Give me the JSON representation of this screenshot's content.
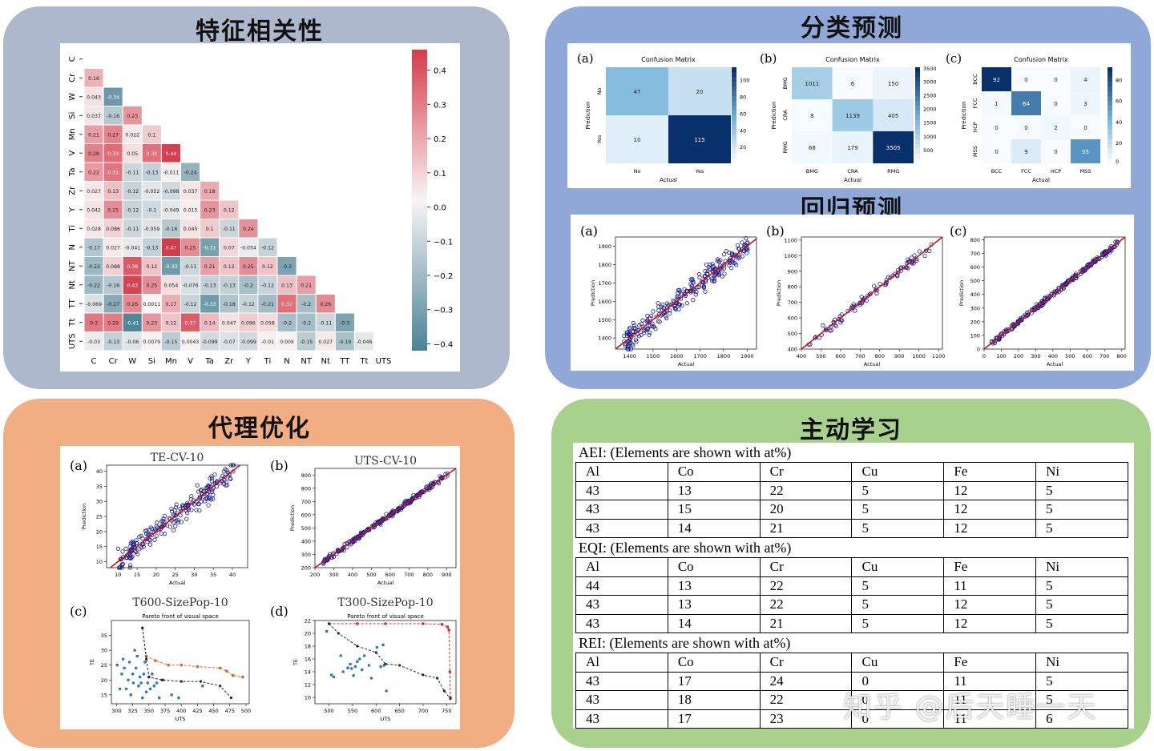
{
  "panels": {
    "correlation": {
      "title": "特征相关性"
    },
    "classification": {
      "title": "分类预测"
    },
    "regression": {
      "title": "回归预测"
    },
    "surrogate": {
      "title": "代理优化"
    },
    "active_learning": {
      "title": "主动学习"
    }
  },
  "colors": {
    "tl_bg": "#aeb8cc",
    "tr_bg": "#8fa8d8",
    "bl_bg": "#f1ae82",
    "br_bg": "#a9d18e",
    "positive": "#d63b4a",
    "negative": "#3e7b8f",
    "navy": "#08306b",
    "fit_line": "#cc1111",
    "points": "#1a1a8c",
    "pareto_orange": "#e0651e",
    "pareto_blue": "#2b7bb9"
  },
  "chart_data": [
    {
      "type": "heatmap",
      "labels": [
        "C",
        "Cr",
        "W",
        "Si",
        "Mn",
        "V",
        "Ta",
        "Zr",
        "Y",
        "Ti",
        "N",
        "NT",
        "Nt",
        "TT",
        "Tt",
        "UTS"
      ],
      "values": [
        [
          0.16
        ],
        [
          0.043,
          -0.34
        ],
        [
          0.037,
          -0.16,
          0.23
        ],
        [
          0.21,
          0.27,
          0.022,
          0.1
        ],
        [
          0.28,
          0.33,
          0.05,
          0.32,
          0.44
        ],
        [
          0.22,
          0.31,
          -0.11,
          -0.13,
          -0.011,
          -0.24
        ],
        [
          0.027,
          0.13,
          -0.12,
          -0.052,
          -0.098,
          0.037,
          0.18
        ],
        [
          0.042,
          0.25,
          -0.12,
          -0.1,
          -0.049,
          0.015,
          0.23,
          0.12
        ],
        [
          0.028,
          0.086,
          -0.11,
          -0.059,
          -0.16,
          0.045,
          0.1,
          -0.11,
          0.24
        ],
        [
          -0.17,
          0.027,
          -0.041,
          -0.13,
          0.47,
          0.25,
          -0.31,
          0.07,
          -0.034,
          -0.12
        ],
        [
          -0.22,
          0.088,
          0.38,
          0.12,
          -0.33,
          -0.11,
          0.21,
          0.12,
          0.25,
          0.12,
          -0.3
        ],
        [
          -0.22,
          -0.16,
          0.43,
          0.25,
          0.054,
          -0.076,
          -0.13,
          -0.13,
          -0.2,
          -0.12,
          0.13,
          0.21
        ],
        [
          -0.069,
          -0.27,
          0.26,
          0.0011,
          0.17,
          -0.12,
          -0.33,
          -0.18,
          -0.12,
          -0.21,
          0.32,
          -0.2,
          0.26
        ],
        [
          0.3,
          0.29,
          -0.41,
          0.23,
          0.12,
          0.37,
          0.14,
          0.047,
          0.096,
          0.058,
          -0.2,
          -0.2,
          -0.11,
          -0.3
        ],
        [
          -0.03,
          -0.13,
          -0.06,
          0.0079,
          -0.15,
          0.0043,
          -0.099,
          -0.07,
          -0.099,
          -0.01,
          0.005,
          -0.15,
          0.027,
          -0.19,
          -0.046
        ]
      ],
      "colorbar_ticks": [
        "0.4",
        "0.3",
        "0.2",
        "0.1",
        "0.0",
        "−0.1",
        "−0.2",
        "−0.3",
        "−0.4"
      ]
    },
    {
      "type": "heatmap",
      "panel_label": "(a)",
      "title": "Confusion Matrix",
      "xlabel": "Actual",
      "ylabel": "Prediction",
      "x_categories": [
        "No",
        "Yes"
      ],
      "y_categories": [
        "No",
        "Yes"
      ],
      "values": [
        [
          47,
          20
        ],
        [
          10,
          115
        ]
      ],
      "colorbar_ticks": [
        "100",
        "80",
        "60",
        "40",
        "20"
      ],
      "max": 115
    },
    {
      "type": "heatmap",
      "panel_label": "(b)",
      "title": "Confusion Matrix",
      "xlabel": "Actual",
      "ylabel": "Prediction",
      "x_categories": [
        "BMG",
        "CRA",
        "RMG"
      ],
      "y_categories": [
        "BMG",
        "CRA",
        "RMG"
      ],
      "values": [
        [
          1011,
          6,
          150
        ],
        [
          8,
          1139,
          405
        ],
        [
          68,
          179,
          3505
        ]
      ],
      "colorbar_ticks": [
        "3500",
        "3000",
        "2500",
        "2000",
        "1500",
        "1000",
        "500"
      ],
      "max": 3505
    },
    {
      "type": "heatmap",
      "panel_label": "(c)",
      "title": "Confusion Matrix",
      "xlabel": "Actual",
      "ylabel": "Prediction",
      "x_categories": [
        "BCC",
        "FCC",
        "HCP",
        "MSS"
      ],
      "y_categories": [
        "BCC",
        "FCC",
        "HCP",
        "MSS"
      ],
      "values": [
        [
          92,
          0,
          0,
          4
        ],
        [
          1,
          64,
          0,
          3
        ],
        [
          0,
          0,
          2,
          0
        ],
        [
          0,
          9,
          0,
          55
        ]
      ],
      "colorbar_ticks": [
        "80",
        "60",
        "40",
        "20",
        "0"
      ],
      "max": 92
    },
    {
      "type": "scatter",
      "panel_label": "(a)",
      "xlabel": "Actual",
      "ylabel": "Prediction",
      "xlim": [
        1340,
        1940
      ],
      "ylim": [
        1340,
        1950
      ],
      "xticks": [
        "1400",
        "1500",
        "1600",
        "1700",
        "1800",
        "1900"
      ],
      "yticks": [
        "1400",
        "1500",
        "1600",
        "1700",
        "1800",
        "1900"
      ],
      "n_points": 260,
      "spread": 40
    },
    {
      "type": "scatter",
      "panel_label": "(b)",
      "xlabel": "Actual",
      "ylabel": "Prediction",
      "xlim": [
        400,
        1120
      ],
      "ylim": [
        400,
        1120
      ],
      "xticks": [
        "400",
        "500",
        "600",
        "700",
        "800",
        "900",
        "1000",
        "1100"
      ],
      "yticks": [
        "400",
        "500",
        "600",
        "700",
        "800",
        "900",
        "1000",
        "1100"
      ],
      "n_points": 90,
      "spread": 28
    },
    {
      "type": "scatter",
      "panel_label": "(c)",
      "xlabel": "Actual",
      "ylabel": "Prediction",
      "xlim": [
        0,
        820
      ],
      "ylim": [
        0,
        820
      ],
      "xticks": [
        "0",
        "100",
        "200",
        "300",
        "400",
        "500",
        "600",
        "700",
        "800"
      ],
      "yticks": [
        "0",
        "100",
        "200",
        "300",
        "400",
        "500",
        "600",
        "700",
        "800"
      ],
      "n_points": 230,
      "spread": 14
    },
    {
      "type": "scatter",
      "panel_label": "(a)",
      "title": "TE-CV-10",
      "xlabel": "Actual",
      "ylabel": "Prediction",
      "xlim": [
        7,
        44
      ],
      "ylim": [
        8,
        42
      ],
      "xticks": [
        "10",
        "15",
        "20",
        "25",
        "30",
        "35",
        "40"
      ],
      "yticks": [
        "10",
        "15",
        "20",
        "25",
        "30",
        "35",
        "40"
      ],
      "n_points": 220,
      "spread": 3
    },
    {
      "type": "scatter",
      "panel_label": "(b)",
      "title": "UTS-CV-10",
      "xlabel": "Actual",
      "ylabel": "Prediction",
      "xlim": [
        200,
        950
      ],
      "ylim": [
        200,
        950
      ],
      "xticks": [
        "200",
        "300",
        "400",
        "500",
        "600",
        "700",
        "800",
        "900"
      ],
      "yticks": [
        "200",
        "300",
        "400",
        "500",
        "600",
        "700",
        "800",
        "900"
      ],
      "n_points": 230,
      "spread": 14
    },
    {
      "type": "scatter",
      "panel_label": "(c)",
      "title": "T600-SizePop-10",
      "subtitle": "Pareto front of visual space",
      "xlabel": "UTS",
      "ylabel": "TE",
      "xlim": [
        292,
        505
      ],
      "ylim": [
        12,
        40
      ],
      "xticks": [
        "300",
        "325",
        "350",
        "375",
        "400",
        "425",
        "450",
        "475",
        "500"
      ],
      "yticks": [
        "15",
        "20",
        "25",
        "30",
        "35"
      ],
      "points": [
        [
          301,
          25
        ],
        [
          305,
          17
        ],
        [
          308,
          22
        ],
        [
          310,
          27
        ],
        [
          312,
          24
        ],
        [
          315,
          17
        ],
        [
          318,
          20
        ],
        [
          320,
          26
        ],
        [
          322,
          15
        ],
        [
          325,
          22
        ],
        [
          326,
          19
        ],
        [
          328,
          30
        ],
        [
          330,
          24
        ],
        [
          332,
          28
        ],
        [
          334,
          18
        ],
        [
          336,
          21
        ],
        [
          338,
          19
        ],
        [
          340,
          14
        ],
        [
          342,
          22
        ],
        [
          344,
          26
        ],
        [
          346,
          16
        ],
        [
          348,
          19
        ],
        [
          350,
          21
        ],
        [
          352,
          17
        ],
        [
          355,
          22
        ],
        [
          358,
          18
        ],
        [
          362,
          19
        ],
        [
          366,
          14
        ],
        [
          372,
          20
        ],
        [
          385,
          15
        ],
        [
          396,
          14
        ],
        [
          433,
          18
        ]
      ],
      "front_orange": [
        [
          340,
          37.5
        ],
        [
          346,
          28
        ],
        [
          360,
          26.5
        ],
        [
          380,
          25
        ],
        [
          400,
          25
        ],
        [
          425,
          24.5
        ],
        [
          460,
          24
        ],
        [
          470,
          23
        ],
        [
          480,
          21.5
        ],
        [
          495,
          21
        ]
      ],
      "front_black": [
        [
          340,
          37.5
        ],
        [
          346,
          27
        ],
        [
          350,
          21
        ],
        [
          370,
          20
        ],
        [
          400,
          19.5
        ],
        [
          430,
          19.5
        ],
        [
          460,
          18
        ],
        [
          477,
          14
        ]
      ]
    },
    {
      "type": "scatter",
      "panel_label": "(d)",
      "title": "T300-SizePop-10",
      "subtitle": "Pareto front of visual space",
      "xlabel": "UTS",
      "ylabel": "TE",
      "xlim": [
        470,
        770
      ],
      "ylim": [
        9,
        22
      ],
      "xticks": [
        "500",
        "550",
        "600",
        "650",
        "700",
        "750"
      ],
      "yticks": [
        "10",
        "12",
        "14",
        "16",
        "18",
        "20",
        "22"
      ],
      "points": [
        [
          495,
          20.3
        ],
        [
          505,
          13.5
        ],
        [
          510,
          13.2
        ],
        [
          525,
          16.5
        ],
        [
          530,
          14
        ],
        [
          540,
          14.6
        ],
        [
          545,
          15.2
        ],
        [
          548,
          14.5
        ],
        [
          552,
          13.4
        ],
        [
          556,
          14.8
        ],
        [
          560,
          15.6
        ],
        [
          565,
          16
        ],
        [
          570,
          14.3
        ],
        [
          575,
          16.5
        ],
        [
          585,
          15
        ],
        [
          590,
          13
        ],
        [
          602,
          17.8
        ],
        [
          610,
          14.8
        ],
        [
          615,
          18.2
        ],
        [
          617,
          15
        ],
        [
          622,
          11
        ]
      ],
      "front_red": [
        [
          500,
          21.5
        ],
        [
          560,
          21.5
        ],
        [
          620,
          21.5
        ],
        [
          700,
          21.5
        ],
        [
          740,
          21.4
        ],
        [
          752,
          21
        ],
        [
          755,
          20.5
        ],
        [
          757,
          14
        ],
        [
          758,
          10
        ]
      ],
      "front_black": [
        [
          500,
          21.5
        ],
        [
          520,
          20
        ],
        [
          560,
          18
        ],
        [
          600,
          17
        ],
        [
          620,
          15.2
        ],
        [
          650,
          15
        ],
        [
          700,
          13.5
        ],
        [
          730,
          13
        ],
        [
          745,
          11
        ],
        [
          758,
          9.8
        ]
      ]
    }
  ],
  "active_learning": {
    "header": [
      "Al",
      "Co",
      "Cr",
      "Cu",
      "Fe",
      "Ni"
    ],
    "tables": [
      {
        "caption": "AEI: (Elements are shown with at%)",
        "rows": [
          [
            "43",
            "13",
            "22",
            "5",
            "12",
            "5"
          ],
          [
            "43",
            "15",
            "20",
            "5",
            "12",
            "5"
          ],
          [
            "43",
            "14",
            "21",
            "5",
            "12",
            "5"
          ]
        ]
      },
      {
        "caption": "EQI: (Elements are shown with at%)",
        "rows": [
          [
            "44",
            "13",
            "22",
            "5",
            "11",
            "5"
          ],
          [
            "43",
            "13",
            "22",
            "5",
            "12",
            "5"
          ],
          [
            "43",
            "14",
            "21",
            "5",
            "12",
            "5"
          ]
        ]
      },
      {
        "caption": "REI: (Elements are shown with at%)",
        "rows": [
          [
            "43",
            "17",
            "24",
            "0",
            "11",
            "5"
          ],
          [
            "43",
            "18",
            "22",
            "0",
            "11",
            "5"
          ],
          [
            "43",
            "17",
            "23",
            "0",
            "11",
            "6"
          ]
        ]
      }
    ]
  },
  "watermark": "知乎 @后天睡一天"
}
